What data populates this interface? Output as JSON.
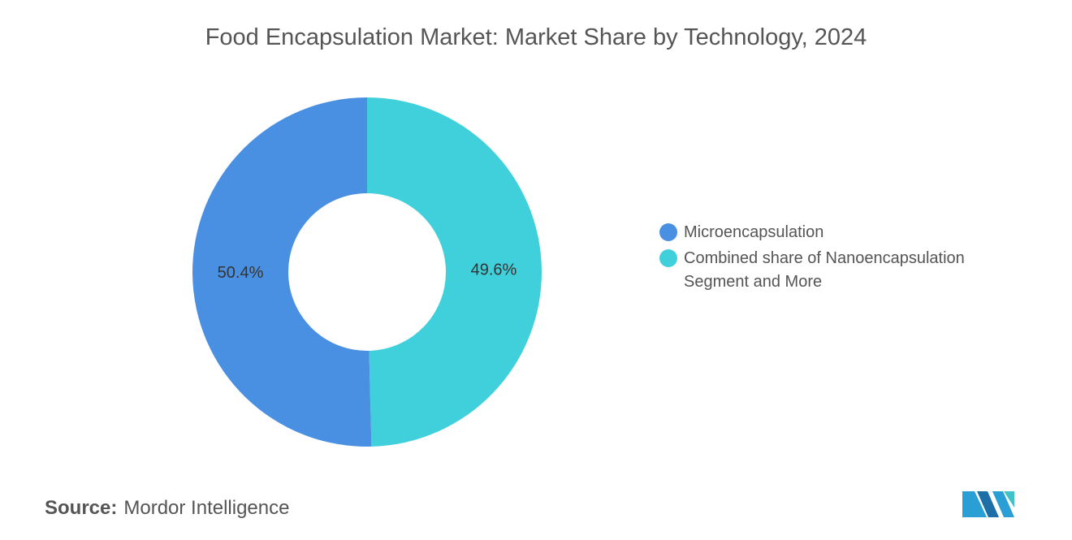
{
  "chart_data": {
    "type": "donut",
    "title": "Food Encapsulation Market: Market Share by Technology, 2024",
    "categories": [
      "Microencapsulation",
      "Combined share of Nanoencapsulation Segment and More"
    ],
    "values": [
      50.4,
      49.6
    ],
    "value_labels": [
      "50.4%",
      "49.6%"
    ],
    "colors": [
      "#4a90e2",
      "#40d0db"
    ],
    "legend": "right"
  },
  "source": {
    "label": "Source:",
    "text": "Mordor Intelligence"
  }
}
